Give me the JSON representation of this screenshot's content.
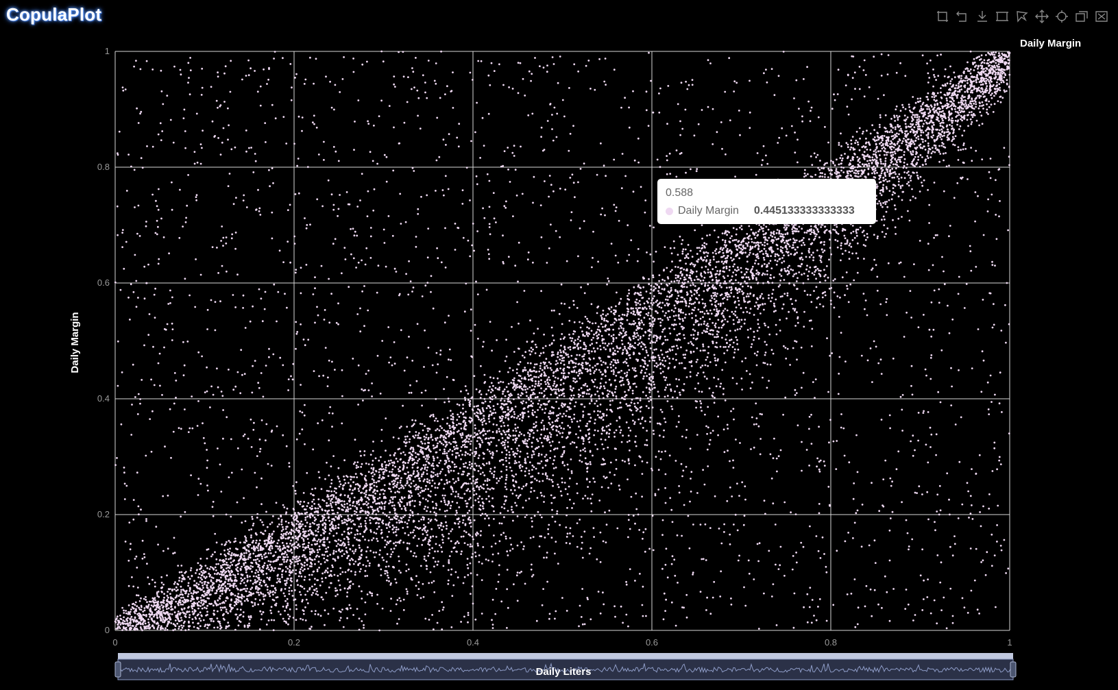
{
  "app": {
    "title": "CopulaPlot"
  },
  "toolbar": {
    "tools": [
      "zoom-in-icon",
      "zoom-reset-icon",
      "download-icon",
      "rect-select-icon",
      "lasso-select-icon",
      "pan-icon",
      "move-icon",
      "box-select-icon",
      "clear-select-icon"
    ]
  },
  "tooltip": {
    "x_value": "0.588",
    "series": "Daily Margin",
    "y_value": "0.445133333333333"
  },
  "colors": {
    "points": "#efd9f2",
    "background": "#000000",
    "grid": "#ffffff",
    "slider": "#8e9cc7"
  },
  "chart_data": {
    "type": "scatter",
    "xlabel": "Daily Liters",
    "ylabel": "Daily Margin",
    "xlim": [
      0,
      1
    ],
    "ylim": [
      0,
      1
    ],
    "x_ticks": [
      "0",
      "0.2",
      "0.4",
      "0.6",
      "0.8",
      "1"
    ],
    "y_ticks": [
      "0",
      "0.2",
      "0.4",
      "0.6",
      "0.8",
      "1"
    ],
    "grid": true,
    "legend_position": "top-right",
    "series": [
      {
        "name": "Daily Margin",
        "x": [
          0.05,
          0.1,
          0.12,
          0.15,
          0.2,
          0.22,
          0.25,
          0.28,
          0.3,
          0.33,
          0.35,
          0.38,
          0.4,
          0.42,
          0.45,
          0.48,
          0.5,
          0.52,
          0.55,
          0.58,
          0.588,
          0.6,
          0.63,
          0.65,
          0.68,
          0.7,
          0.72,
          0.75,
          0.78,
          0.8,
          0.83,
          0.85,
          0.88,
          0.9,
          0.93,
          0.95,
          0.98
        ],
        "y": [
          0.03,
          0.08,
          0.1,
          0.13,
          0.18,
          0.2,
          0.22,
          0.26,
          0.27,
          0.3,
          0.33,
          0.35,
          0.38,
          0.4,
          0.42,
          0.46,
          0.47,
          0.5,
          0.52,
          0.55,
          0.445,
          0.57,
          0.6,
          0.62,
          0.66,
          0.67,
          0.7,
          0.72,
          0.76,
          0.78,
          0.8,
          0.83,
          0.86,
          0.88,
          0.91,
          0.93,
          0.97
        ]
      }
    ]
  }
}
